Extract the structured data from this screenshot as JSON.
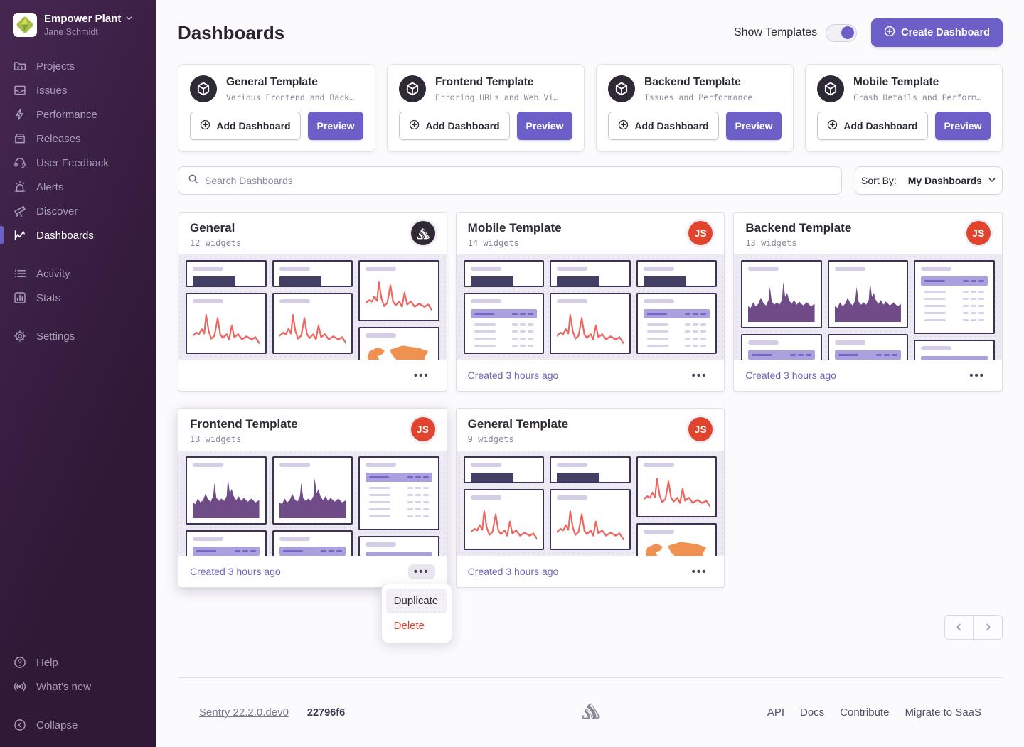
{
  "sidebar": {
    "org": {
      "name": "Empower Plant",
      "user": "Jane Schmidt"
    },
    "nav": [
      {
        "label": "Projects",
        "icon": "projects",
        "active": false
      },
      {
        "label": "Issues",
        "icon": "issues",
        "active": false
      },
      {
        "label": "Performance",
        "icon": "performance",
        "active": false
      },
      {
        "label": "Releases",
        "icon": "releases",
        "active": false
      },
      {
        "label": "User Feedback",
        "icon": "user-feedback",
        "active": false
      },
      {
        "label": "Alerts",
        "icon": "alerts",
        "active": false
      },
      {
        "label": "Discover",
        "icon": "discover",
        "active": false
      },
      {
        "label": "Dashboards",
        "icon": "dashboards",
        "active": true
      }
    ],
    "nav2": [
      {
        "label": "Activity",
        "icon": "activity",
        "active": false
      },
      {
        "label": "Stats",
        "icon": "stats",
        "active": false
      }
    ],
    "nav3": [
      {
        "label": "Settings",
        "icon": "settings",
        "active": false
      }
    ],
    "nav4": [
      {
        "label": "Help",
        "icon": "help",
        "active": false
      },
      {
        "label": "What's new",
        "icon": "whats-new",
        "active": false
      }
    ],
    "collapse": {
      "label": "Collapse",
      "icon": "collapse"
    }
  },
  "header": {
    "title": "Dashboards",
    "show_templates_label": "Show Templates",
    "show_templates_on": true,
    "create_button": "Create Dashboard"
  },
  "template_section": {
    "add_label": "Add Dashboard",
    "preview_label": "Preview",
    "cards": [
      {
        "name": "General Template",
        "desc": "Various Frontend and Back…"
      },
      {
        "name": "Frontend Template",
        "desc": "Erroring URLs and Web Vi…"
      },
      {
        "name": "Backend Template",
        "desc": "Issues and Performance"
      },
      {
        "name": "Mobile Template",
        "desc": "Crash Details and Perform…"
      }
    ]
  },
  "search": {
    "placeholder": "Search Dashboards"
  },
  "sort": {
    "label": "Sort By:",
    "value": "My Dashboards"
  },
  "dashboard_list": {
    "cards": [
      {
        "title": "General",
        "widgets": "12 widgets",
        "created": "",
        "avatar": "sentry",
        "preview": "general",
        "raised": false,
        "menu_open": false
      },
      {
        "title": "Mobile Template",
        "widgets": "14 widgets",
        "created": "Created 3 hours ago",
        "avatar": "JS",
        "preview": "mobile",
        "raised": false,
        "menu_open": false
      },
      {
        "title": "Backend Template",
        "widgets": "13 widgets",
        "created": "Created 3 hours ago",
        "avatar": "JS",
        "preview": "backend",
        "raised": false,
        "menu_open": false
      },
      {
        "title": "Frontend Template",
        "widgets": "13 widgets",
        "created": "Created 3 hours ago",
        "avatar": "JS",
        "preview": "backend",
        "raised": true,
        "menu_open": true
      },
      {
        "title": "General Template",
        "widgets": "9 widgets",
        "created": "Created 3 hours ago",
        "avatar": "JS",
        "preview": "general",
        "raised": false,
        "menu_open": false
      }
    ]
  },
  "context_menu": {
    "items": [
      {
        "label": "Duplicate",
        "danger": false,
        "highlighted": true
      },
      {
        "label": "Delete",
        "danger": true,
        "highlighted": false
      }
    ]
  },
  "footer": {
    "version": "Sentry 22.2.0.dev0",
    "build": "22796f6",
    "links": [
      "API",
      "Docs",
      "Contribute",
      "Migrate to SaaS"
    ]
  },
  "colors": {
    "accent": "#6c5fc7",
    "sidebar_dark": "#2f1937",
    "avatar_red": "#e0432e",
    "chart_line_red": "#ec6660",
    "chart_area_purple": "#6f4b87",
    "map_orange": "#ef9150",
    "danger": "#e0432e"
  }
}
